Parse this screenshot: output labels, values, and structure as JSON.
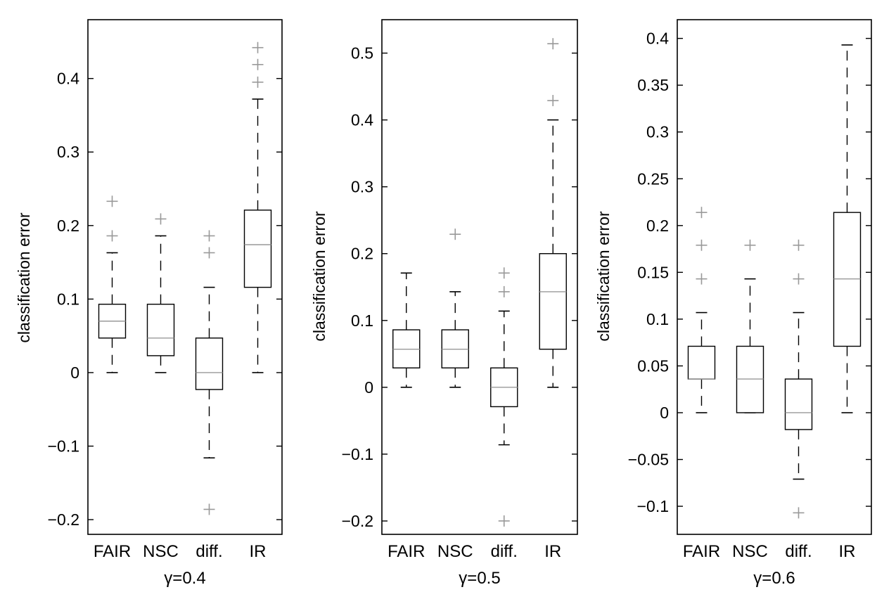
{
  "chart_data": [
    {
      "type": "boxplot",
      "ylabel": "classification error",
      "xlabel": "γ=0.4",
      "categories": [
        "FAIR",
        "NSC",
        "diff.",
        "IR"
      ],
      "ylim": [
        -0.22,
        0.48
      ],
      "yticks": [
        -0.2,
        -0.1,
        0,
        0.1,
        0.2,
        0.3,
        0.4
      ],
      "ytick_labels": [
        "−0.2",
        "−0.1",
        "0",
        "0.1",
        "0.2",
        "0.3",
        "0.4"
      ],
      "boxes": [
        {
          "category": "FAIR",
          "whisker_low": 0,
          "q1": 0.047,
          "median": 0.07,
          "q3": 0.093,
          "whisker_high": 0.163,
          "outliers": [
            0.186,
            0.233
          ]
        },
        {
          "category": "NSC",
          "whisker_low": 0,
          "q1": 0.023,
          "median": 0.047,
          "q3": 0.093,
          "whisker_high": 0.186,
          "outliers": [
            0.209
          ]
        },
        {
          "category": "diff.",
          "whisker_low": -0.116,
          "q1": -0.023,
          "median": 0,
          "q3": 0.047,
          "whisker_high": 0.116,
          "outliers": [
            0.163,
            0.186,
            -0.186
          ]
        },
        {
          "category": "IR",
          "whisker_low": 0,
          "q1": 0.116,
          "median": 0.174,
          "q3": 0.221,
          "whisker_high": 0.372,
          "outliers": [
            0.395,
            0.419,
            0.442
          ]
        }
      ]
    },
    {
      "type": "boxplot",
      "ylabel": "classification error",
      "xlabel": "γ=0.5",
      "categories": [
        "FAIR",
        "NSC",
        "diff.",
        "IR"
      ],
      "ylim": [
        -0.22,
        0.55
      ],
      "yticks": [
        -0.2,
        -0.1,
        0,
        0.1,
        0.2,
        0.3,
        0.4,
        0.5
      ],
      "ytick_labels": [
        "−0.2",
        "−0.1",
        "0",
        "0.1",
        "0.2",
        "0.3",
        "0.4",
        "0.5"
      ],
      "boxes": [
        {
          "category": "FAIR",
          "whisker_low": 0,
          "q1": 0.029,
          "median": 0.057,
          "q3": 0.086,
          "whisker_high": 0.171,
          "outliers": []
        },
        {
          "category": "NSC",
          "whisker_low": 0,
          "q1": 0.029,
          "median": 0.057,
          "q3": 0.086,
          "whisker_high": 0.143,
          "outliers": [
            0.229
          ]
        },
        {
          "category": "diff.",
          "whisker_low": -0.086,
          "q1": -0.029,
          "median": 0,
          "q3": 0.029,
          "whisker_high": 0.114,
          "outliers": [
            0.143,
            0.171,
            -0.2
          ]
        },
        {
          "category": "IR",
          "whisker_low": 0,
          "q1": 0.057,
          "median": 0.143,
          "q3": 0.2,
          "whisker_high": 0.4,
          "outliers": [
            0.429,
            0.514
          ]
        }
      ]
    },
    {
      "type": "boxplot",
      "ylabel": "classification error",
      "xlabel": "γ=0.6",
      "categories": [
        "FAIR",
        "NSC",
        "diff.",
        "IR"
      ],
      "ylim": [
        -0.13,
        0.42
      ],
      "yticks": [
        -0.1,
        -0.05,
        0,
        0.05,
        0.1,
        0.15,
        0.2,
        0.25,
        0.3,
        0.35,
        0.4
      ],
      "ytick_labels": [
        "−0.1",
        "−0.05",
        "0",
        "0.05",
        "0.1",
        "0.15",
        "0.2",
        "0.25",
        "0.3",
        "0.35",
        "0.4"
      ],
      "boxes": [
        {
          "category": "FAIR",
          "whisker_low": 0,
          "q1": 0.036,
          "median": 0.036,
          "q3": 0.071,
          "whisker_high": 0.107,
          "outliers": [
            0.143,
            0.179,
            0.214
          ]
        },
        {
          "category": "NSC",
          "whisker_low": 0,
          "q1": 0,
          "median": 0.036,
          "q3": 0.071,
          "whisker_high": 0.143,
          "outliers": [
            0.179
          ]
        },
        {
          "category": "diff.",
          "whisker_low": -0.071,
          "q1": -0.018,
          "median": 0,
          "q3": 0.036,
          "whisker_high": 0.107,
          "outliers": [
            0.143,
            0.179,
            -0.107
          ]
        },
        {
          "category": "IR",
          "whisker_low": 0,
          "q1": 0.071,
          "median": 0.143,
          "q3": 0.214,
          "whisker_high": 0.393,
          "outliers": []
        }
      ]
    }
  ]
}
